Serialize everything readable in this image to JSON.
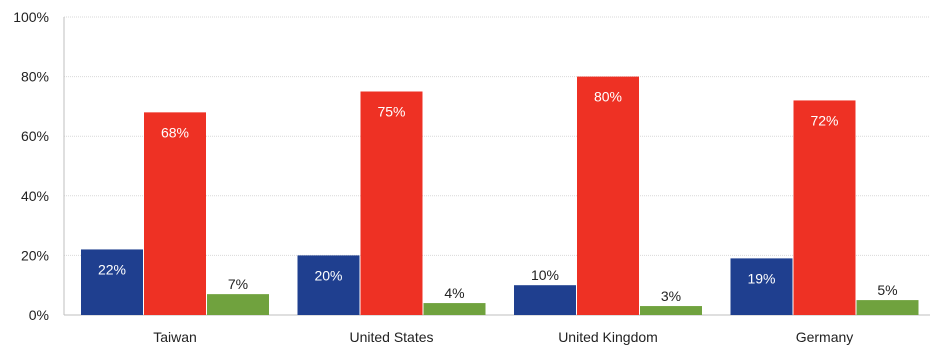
{
  "chart_data": {
    "type": "bar",
    "title": "",
    "xlabel": "",
    "ylabel": "",
    "categories": [
      "Taiwan",
      "United States",
      "United Kingdom",
      "Germany"
    ],
    "series": [
      {
        "color": "#1f3f8f",
        "values": [
          22,
          20,
          10,
          19
        ],
        "labels": [
          "22%",
          "20%",
          "10%",
          "19%"
        ]
      },
      {
        "color": "#ee3124",
        "values": [
          68,
          75,
          80,
          72
        ],
        "labels": [
          "68%",
          "75%",
          "80%",
          "72%"
        ]
      },
      {
        "color": "#70a23e",
        "values": [
          7,
          4,
          3,
          5
        ],
        "labels": [
          "7%",
          "4%",
          "3%",
          "5%"
        ]
      }
    ],
    "ylim": [
      0,
      100
    ],
    "yticks": [
      0,
      20,
      40,
      60,
      80,
      100
    ],
    "ytick_labels": [
      "0%",
      "20%",
      "40%",
      "60%",
      "80%",
      "100%"
    ],
    "grid": true,
    "legend": "none"
  }
}
